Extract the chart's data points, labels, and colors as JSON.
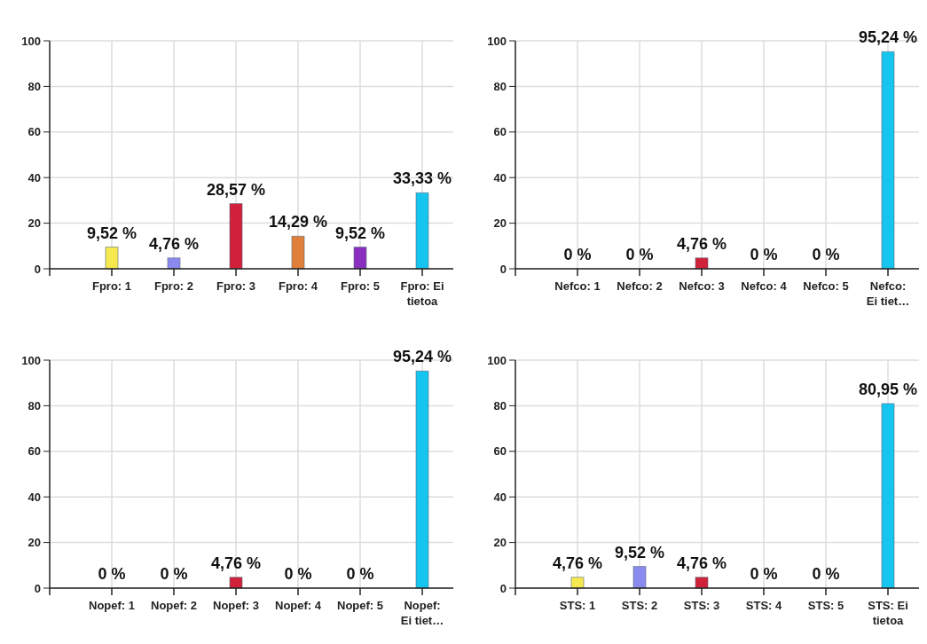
{
  "chart_data": [
    {
      "type": "bar",
      "categories": [
        "Fpro: 1",
        "Fpro: 2",
        "Fpro: 3",
        "Fpro: 4",
        "Fpro: 5",
        "Fpro: Ei tietoa"
      ],
      "values": [
        9.52,
        4.76,
        28.57,
        14.29,
        9.52,
        33.33
      ],
      "colors": [
        "#f5e94f",
        "#8a8aee",
        "#d0203a",
        "#e07f3a",
        "#8a2fc0",
        "#16c4f0"
      ],
      "value_labels": [
        "9,52 %",
        "4,76 %",
        "28,57 %",
        "14,29 %",
        "9,52 %",
        "33,33 %"
      ],
      "ylim": [
        0,
        100
      ],
      "yticks": [
        0,
        20,
        40,
        60,
        80,
        100
      ],
      "grid": true
    },
    {
      "type": "bar",
      "categories": [
        "Nefco: 1",
        "Nefco: 2",
        "Nefco: 3",
        "Nefco: 4",
        "Nefco: 5",
        "Nefco: Ei tiet…"
      ],
      "values": [
        0,
        0,
        4.76,
        0,
        0,
        95.24
      ],
      "colors": [
        "#f5e94f",
        "#8a8aee",
        "#d0203a",
        "#e07f3a",
        "#8a2fc0",
        "#16c4f0"
      ],
      "value_labels": [
        "0 %",
        "0 %",
        "4,76 %",
        "0 %",
        "0 %",
        "95,24 %"
      ],
      "ylim": [
        0,
        100
      ],
      "yticks": [
        0,
        20,
        40,
        60,
        80,
        100
      ],
      "grid": true
    },
    {
      "type": "bar",
      "categories": [
        "Nopef: 1",
        "Nopef: 2",
        "Nopef: 3",
        "Nopef: 4",
        "Nopef: 5",
        "Nopef: Ei tiet…"
      ],
      "values": [
        0,
        0,
        4.76,
        0,
        0,
        95.24
      ],
      "colors": [
        "#f5e94f",
        "#8a8aee",
        "#d0203a",
        "#e07f3a",
        "#8a2fc0",
        "#16c4f0"
      ],
      "value_labels": [
        "0 %",
        "0 %",
        "4,76 %",
        "0 %",
        "0 %",
        "95,24 %"
      ],
      "ylim": [
        0,
        100
      ],
      "yticks": [
        0,
        20,
        40,
        60,
        80,
        100
      ],
      "grid": true
    },
    {
      "type": "bar",
      "categories": [
        "STS: 1",
        "STS: 2",
        "STS: 3",
        "STS: 4",
        "STS: 5",
        "STS: Ei tietoa"
      ],
      "values": [
        4.76,
        9.52,
        4.76,
        0,
        0,
        80.95
      ],
      "colors": [
        "#f5e94f",
        "#8a8aee",
        "#d0203a",
        "#e07f3a",
        "#8a2fc0",
        "#16c4f0"
      ],
      "value_labels": [
        "4,76 %",
        "9,52 %",
        "4,76 %",
        "0 %",
        "0 %",
        "80,95 %"
      ],
      "ylim": [
        0,
        100
      ],
      "yticks": [
        0,
        20,
        40,
        60,
        80,
        100
      ],
      "grid": true
    }
  ]
}
